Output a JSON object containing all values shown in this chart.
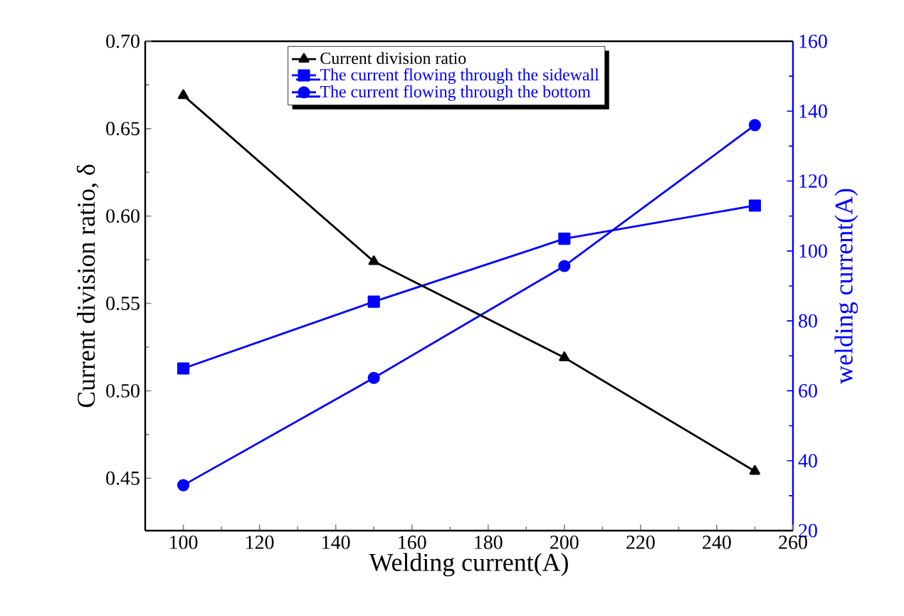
{
  "chart_data": {
    "type": "line",
    "xlabel": "Welding current(A)",
    "ylabel": "Current division ratio, δ",
    "y2label": "welding current(A)",
    "x": [
      100,
      150,
      200,
      250
    ],
    "series": [
      {
        "name": "Current division ratio",
        "color": "#000000",
        "marker": "triangle",
        "values": [
          0.669,
          0.574,
          0.519,
          0.454
        ]
      },
      {
        "name": "The current flowing through the sidewall",
        "color": "#0000ff",
        "marker": "square",
        "axis": "y2",
        "values": [
          66.4,
          85.5,
          103.5,
          113
        ]
      },
      {
        "name": "The current flowing through the bottom",
        "color": "#0000ff",
        "marker": "circle",
        "axis": "y2",
        "values": [
          33,
          63.7,
          95.7,
          136
        ]
      }
    ],
    "xlim": [
      90,
      260
    ],
    "xticks": [
      100,
      120,
      140,
      160,
      180,
      200,
      220,
      240,
      260
    ],
    "ylim": [
      0.42,
      0.7
    ],
    "yticks": [
      {
        "value": 0.45,
        "label": "0.45"
      },
      {
        "value": 0.5,
        "label": "0.50"
      },
      {
        "value": 0.55,
        "label": "0.55"
      },
      {
        "value": 0.6,
        "label": "0.60"
      },
      {
        "value": 0.65,
        "label": "0.65"
      },
      {
        "value": 0.7,
        "label": "0.70"
      }
    ],
    "y2lim": [
      20,
      160
    ],
    "y2ticks": [
      20,
      40,
      60,
      80,
      100,
      120,
      140,
      160
    ],
    "legend": "top",
    "grid": false,
    "line_style": "solid"
  }
}
